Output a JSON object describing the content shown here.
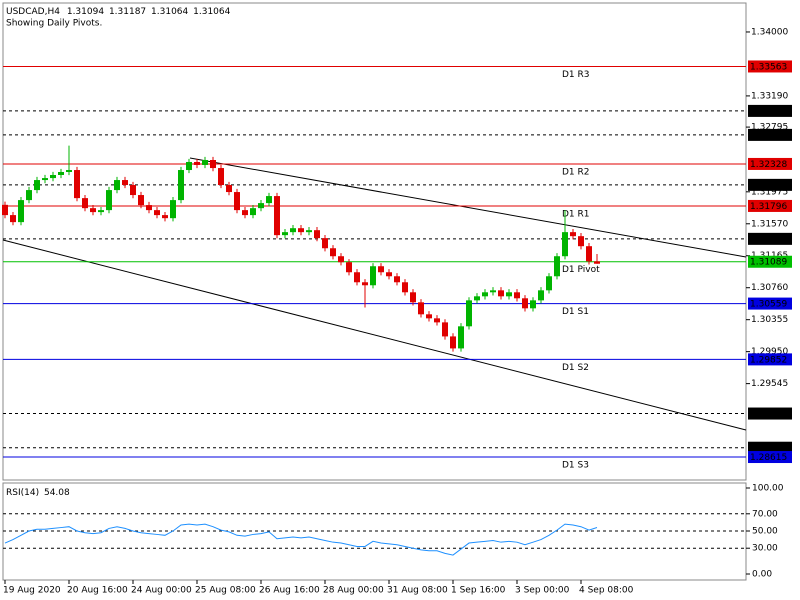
{
  "chart_data": {
    "type": "candlestick",
    "symbol": "USDCAD,H4",
    "subtitle": "Showing Daily Pivots.",
    "categories": [
      "19 Aug 2020",
      null,
      null,
      null,
      null,
      null,
      null,
      null,
      "20 Aug 16:00",
      null,
      null,
      null,
      null,
      null,
      null,
      null,
      "24 Aug 00:00",
      null,
      null,
      null,
      null,
      null,
      null,
      null,
      "25 Aug 08:00",
      null,
      null,
      null,
      null,
      null,
      null,
      null,
      "26 Aug 16:00",
      null,
      null,
      null,
      null,
      null,
      null,
      null,
      "28 Aug 00:00",
      null,
      null,
      null,
      null,
      null,
      null,
      null,
      "31 Aug 08:00",
      null,
      null,
      null,
      null,
      null,
      null,
      null,
      "1 Sep 16:00",
      null,
      null,
      null,
      null,
      null,
      null,
      null,
      "3 Sep 00:00",
      null,
      null,
      null,
      null,
      null,
      null,
      null,
      "4 Sep 08:00",
      null,
      null
    ],
    "open": [
      1.3181,
      1.3168,
      1.31591,
      1.3187,
      1.31997,
      1.32124,
      1.32149,
      1.32188,
      1.32226,
      1.32251,
      1.31895,
      1.31768,
      1.31718,
      1.31743,
      1.31997,
      1.32124,
      1.32061,
      1.31934,
      1.31807,
      1.31743,
      1.3168,
      1.31641,
      1.3187,
      1.32251,
      1.32353,
      1.32315,
      1.32378,
      1.32276,
      1.32061,
      1.31972,
      1.31743,
      1.3168,
      1.31768,
      1.31832,
      1.31921,
      1.31426,
      1.31464,
      1.31514,
      1.31464,
      1.31489,
      1.31388,
      1.3126,
      1.31159,
      1.31083,
      1.30956,
      1.30829,
      1.30791,
      1.31032,
      1.30956,
      1.30905,
      1.30829,
      1.30702,
      1.30575,
      1.30423,
      1.30372,
      1.30321,
      1.30143,
      1.29991,
      1.30271,
      1.306,
      1.30651,
      1.30702,
      1.30727,
      1.30651,
      1.30702,
      1.30626,
      1.30499,
      1.306,
      1.30727,
      1.30905,
      1.31159,
      1.31464,
      1.31413,
      1.31286,
      1.31094
    ],
    "high": [
      1.3185,
      1.3172,
      1.3191,
      1.32037,
      1.32164,
      1.32189,
      1.32228,
      1.32266,
      1.3256,
      1.32291,
      1.31935,
      1.31808,
      1.31783,
      1.32037,
      1.32164,
      1.32164,
      1.32101,
      1.31974,
      1.31847,
      1.31783,
      1.3172,
      1.3191,
      1.32291,
      1.32393,
      1.32393,
      1.32418,
      1.32418,
      1.32316,
      1.32101,
      1.32012,
      1.31783,
      1.31808,
      1.31872,
      1.31961,
      1.31961,
      1.31504,
      1.31554,
      1.31554,
      1.31529,
      1.31529,
      1.31428,
      1.313,
      1.31199,
      1.31123,
      1.30996,
      1.30869,
      1.31072,
      1.31072,
      1.30996,
      1.30945,
      1.30869,
      1.30742,
      1.30615,
      1.30463,
      1.30412,
      1.30361,
      1.30183,
      1.30311,
      1.3064,
      1.30691,
      1.30742,
      1.30767,
      1.30767,
      1.30742,
      1.30742,
      1.30666,
      1.3064,
      1.30767,
      1.30945,
      1.31199,
      1.3174,
      1.31504,
      1.31453,
      1.31326,
      1.31187
    ],
    "low": [
      1.3164,
      1.31551,
      1.31551,
      1.3183,
      1.31957,
      1.32084,
      1.32109,
      1.32148,
      1.32186,
      1.31855,
      1.31728,
      1.31678,
      1.31678,
      1.31703,
      1.31957,
      1.32021,
      1.31894,
      1.31767,
      1.31703,
      1.3164,
      1.31601,
      1.31601,
      1.3183,
      1.32211,
      1.32275,
      1.32275,
      1.32236,
      1.32021,
      1.31932,
      1.31703,
      1.3164,
      1.3164,
      1.31728,
      1.31792,
      1.31386,
      1.31386,
      1.31424,
      1.31424,
      1.31424,
      1.31348,
      1.3122,
      1.31119,
      1.31043,
      1.30916,
      1.30789,
      1.3051,
      1.30751,
      1.30916,
      1.30865,
      1.30789,
      1.30662,
      1.30535,
      1.30383,
      1.30332,
      1.30281,
      1.30103,
      1.29951,
      1.29951,
      1.30231,
      1.3056,
      1.30611,
      1.30662,
      1.30611,
      1.30611,
      1.30586,
      1.30459,
      1.30459,
      1.3056,
      1.30687,
      1.30865,
      1.31119,
      1.31373,
      1.31246,
      1.31054,
      1.31064
    ],
    "close": [
      1.3168,
      1.31591,
      1.3187,
      1.31997,
      1.32124,
      1.32149,
      1.32188,
      1.32226,
      1.32251,
      1.31895,
      1.31768,
      1.31718,
      1.31743,
      1.31997,
      1.32124,
      1.32061,
      1.31934,
      1.31807,
      1.31743,
      1.3168,
      1.31641,
      1.3187,
      1.32251,
      1.32353,
      1.32315,
      1.32378,
      1.32276,
      1.32061,
      1.31972,
      1.31743,
      1.3168,
      1.31768,
      1.31832,
      1.31921,
      1.31426,
      1.31464,
      1.31514,
      1.31464,
      1.31489,
      1.31388,
      1.3126,
      1.31159,
      1.31083,
      1.30956,
      1.30829,
      1.30791,
      1.31032,
      1.30956,
      1.30905,
      1.30829,
      1.30702,
      1.30575,
      1.30423,
      1.30372,
      1.30321,
      1.30143,
      1.29991,
      1.30271,
      1.306,
      1.30651,
      1.30702,
      1.30727,
      1.30651,
      1.30702,
      1.30626,
      1.30499,
      1.306,
      1.30727,
      1.30905,
      1.31159,
      1.31464,
      1.31413,
      1.31286,
      1.31094,
      1.31064
    ],
    "up_color": "#00b400",
    "down_color": "#e00000",
    "ylim": [
      1.28324,
      1.34367
    ],
    "yticks": [
      {
        "value": 1.34,
        "label": "1.34000"
      },
      {
        "value": 1.3319,
        "label": "1.33190"
      },
      1.32795,
      1.31975,
      {
        "value": 1.3157,
        "label": "1.31570"
      },
      1.31165,
      {
        "value": 1.3076,
        "label": "1.30760"
      },
      1.30355,
      {
        "value": 1.2995,
        "label": "1.29950"
      },
      1.29545
    ],
    "levels": [
      {
        "price": 1.33563,
        "label": "D1 R3",
        "color": "#e00000"
      },
      {
        "price": {
          "value": 1.33,
          "label": "1.33000"
        },
        "color": "#000000",
        "dashed": true
      },
      {
        "price": 1.32696,
        "color": "#000000",
        "dashed": true
      },
      {
        "price": 1.32328,
        "label": "D1 R2",
        "color": "#e00000"
      },
      {
        "price": 1.32063,
        "color": "#000000",
        "dashed": true
      },
      {
        "price": 1.31796,
        "label": "D1 R1",
        "color": "#e00000"
      },
      {
        "price": 1.31379,
        "color": "#000000",
        "dashed": true
      },
      {
        "price": 1.31089,
        "label": "D1 Pivot",
        "color": "#00c000"
      },
      {
        "price": 1.30559,
        "label": "D1 S1",
        "color": "#0000e0"
      },
      {
        "price": 1.29852,
        "label": "D1 S2",
        "color": "#0000e0"
      },
      {
        "price": 1.29166,
        "color": "#000000",
        "dashed": true
      },
      {
        "price": 1.28733,
        "color": "#000000",
        "dashed": true
      },
      {
        "price": 1.28615,
        "label": "D1 S3",
        "color": "#0000e0"
      }
    ],
    "indicator": {
      "type": "line",
      "name": "RSI(14)",
      "color": "#1e90ff",
      "values": [
        36,
        40,
        45,
        50,
        52,
        52,
        53,
        54,
        55,
        50,
        48,
        47,
        48,
        53,
        55,
        53,
        50,
        48,
        47,
        46,
        45,
        50,
        57,
        58,
        57,
        58,
        55,
        51,
        49,
        45,
        44,
        46,
        47,
        49,
        41,
        42,
        43,
        42,
        43,
        41,
        39,
        37,
        36,
        34,
        32,
        32,
        38,
        36,
        35,
        34,
        32,
        30,
        28,
        27,
        27,
        24,
        22,
        29,
        36,
        37,
        38,
        39,
        37,
        38,
        37,
        34,
        37,
        40,
        45,
        51,
        58,
        57,
        55,
        51,
        54.08
      ],
      "ylim": [
        0,
        100
      ],
      "yticks": [
        {
          "value": 100,
          "label": "100.00"
        },
        {
          "value": 70,
          "label": "70.00"
        },
        {
          "value": 50,
          "label": "50.00"
        },
        {
          "value": 30,
          "label": "30.00"
        },
        {
          "value": 0,
          "label": "0.00"
        }
      ]
    }
  }
}
